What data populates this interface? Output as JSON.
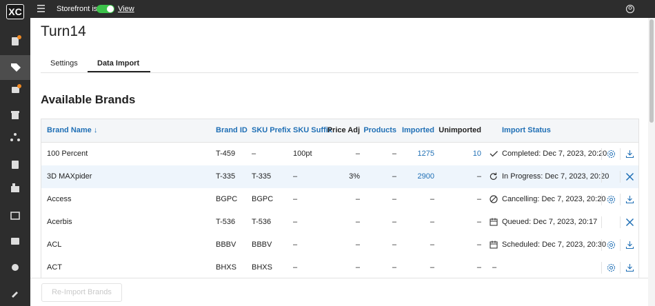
{
  "logo": "XC",
  "top_bar": {
    "storefront_label": "Storefront is",
    "view_link": "View"
  },
  "page": {
    "title": "Turn14",
    "tabs": [
      "Settings",
      "Data Import"
    ],
    "section_title": "Available Brands"
  },
  "table": {
    "columns": [
      "Brand Name ↓",
      "Brand ID",
      "SKU Prefix",
      "SKU Suffix",
      "Price Adj",
      "Products",
      "Imported",
      "Unimported",
      "Import Status"
    ],
    "rows": [
      [
        "100 Percent",
        "T-459",
        "–",
        "100pt",
        "–",
        "–",
        "1275",
        "10",
        "Completed: Dec 7, 2023, 20:20"
      ],
      [
        "3D MAXpider",
        "T-335",
        "T-335",
        "–",
        "3%",
        "–",
        "2900",
        "–",
        "In Progress: Dec 7, 2023, 20:20"
      ],
      [
        "Access",
        "BGPC",
        "BGPC",
        "–",
        "–",
        "–",
        "–",
        "–",
        "Cancelling: Dec 7, 2023, 20:20"
      ],
      [
        "Acerbis",
        "T-536",
        "T-536",
        "–",
        "–",
        "–",
        "–",
        "–",
        "Queued: Dec 7, 2023, 20:17"
      ],
      [
        "ACL",
        "BBBV",
        "BBBV",
        "–",
        "–",
        "–",
        "–",
        "–",
        "Scheduled: Dec 7, 2023, 20:30"
      ],
      [
        "ACT",
        "BHXS",
        "BHXS",
        "–",
        "–",
        "–",
        "–",
        "–",
        "–"
      ]
    ]
  },
  "footer": {
    "button": "Re-Import Brands"
  }
}
